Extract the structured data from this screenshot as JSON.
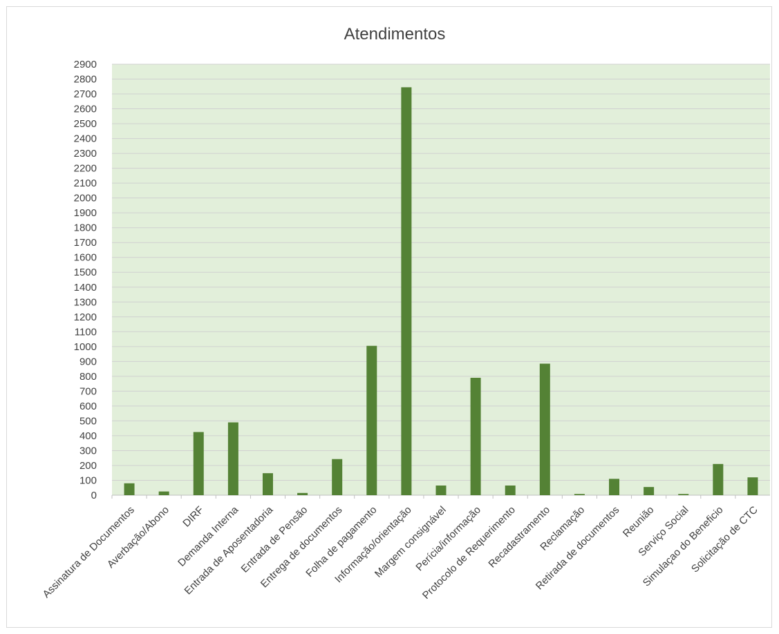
{
  "chart_data": {
    "type": "bar",
    "title": "Atendimentos",
    "xlabel": "",
    "ylabel": "",
    "ylim": [
      0,
      2900
    ],
    "ytick_step": 100,
    "grid": true,
    "legend": "none",
    "colors": {
      "bar": "#548235",
      "plot_bg": "#e2efda",
      "grid": "#d0d0d0",
      "text": "#404040"
    },
    "categories": [
      "Assinatura de Documentos",
      "Averbação/Abono",
      "DIRF",
      "Demanda Interna",
      "Entrada de Aposentadoria",
      "Entrada de Pensão",
      "Entrega de documentos",
      "Folha de pagamento",
      "Informação/orientação",
      "Margem consignável",
      "Perícia/informação",
      "Protocolo de Requerimento",
      "Recadastramento",
      "Reclamação",
      "Retirada de documentos",
      "Reunião",
      "Serviço Social",
      "Simulaçao do Beneficio",
      "Solicitação de CTC"
    ],
    "values": [
      80,
      25,
      425,
      490,
      148,
      15,
      243,
      1005,
      2745,
      65,
      790,
      65,
      885,
      8,
      110,
      55,
      8,
      210,
      120
    ]
  }
}
